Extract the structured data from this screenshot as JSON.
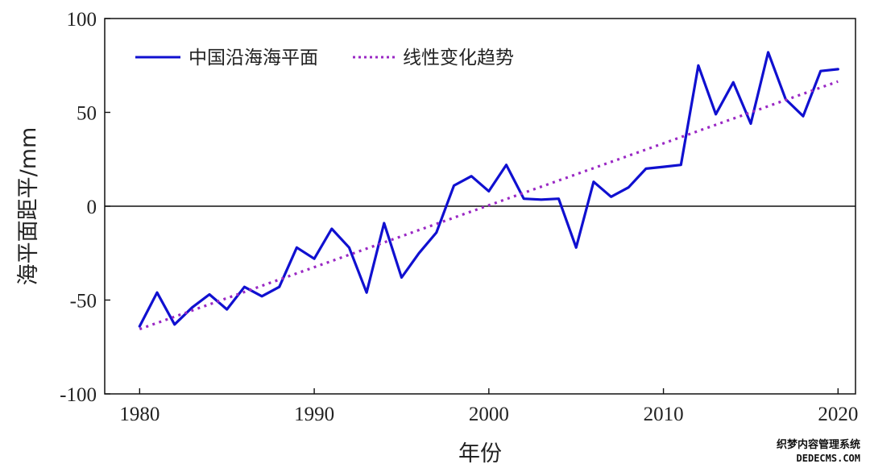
{
  "chart_data": {
    "type": "line",
    "ylabel": "海平面距平/mm",
    "xlabel": "年份",
    "xlim": [
      1978,
      2021
    ],
    "ylim": [
      -100,
      100
    ],
    "x_ticks": [
      1980,
      1990,
      2000,
      2010,
      2020
    ],
    "y_ticks": [
      100,
      50,
      0,
      -50,
      -100
    ],
    "zero_line": true,
    "legend_position": "top-left",
    "series": [
      {
        "name": "中国沿海海平面",
        "style": "solid",
        "color": "#1010d0",
        "x": [
          1980,
          1981,
          1982,
          1983,
          1984,
          1985,
          1986,
          1987,
          1988,
          1989,
          1990,
          1991,
          1992,
          1993,
          1994,
          1995,
          1996,
          1997,
          1998,
          1999,
          2000,
          2001,
          2002,
          2003,
          2004,
          2005,
          2006,
          2007,
          2008,
          2009,
          2010,
          2011,
          2012,
          2013,
          2014,
          2015,
          2016,
          2017,
          2018,
          2019,
          2020
        ],
        "values": [
          -64,
          -46,
          -63,
          -54,
          -47,
          -55,
          -43,
          -48,
          -43,
          -22,
          -28,
          -12,
          -22,
          -46,
          -9,
          -38,
          -25,
          -14,
          11,
          16,
          8,
          22,
          4,
          3.5,
          4,
          -22,
          13,
          5,
          10,
          20,
          21,
          22,
          75,
          49,
          66,
          44,
          82,
          57,
          48,
          72,
          73
        ]
      },
      {
        "name": "线性变化趋势",
        "style": "dotted",
        "color": "#9a28c4",
        "x": [
          1980,
          2020
        ],
        "values": [
          -65.5,
          66.5
        ]
      }
    ]
  },
  "watermark": {
    "line1": "织梦内容管理系统",
    "line2": "DEDECMS.COM"
  }
}
